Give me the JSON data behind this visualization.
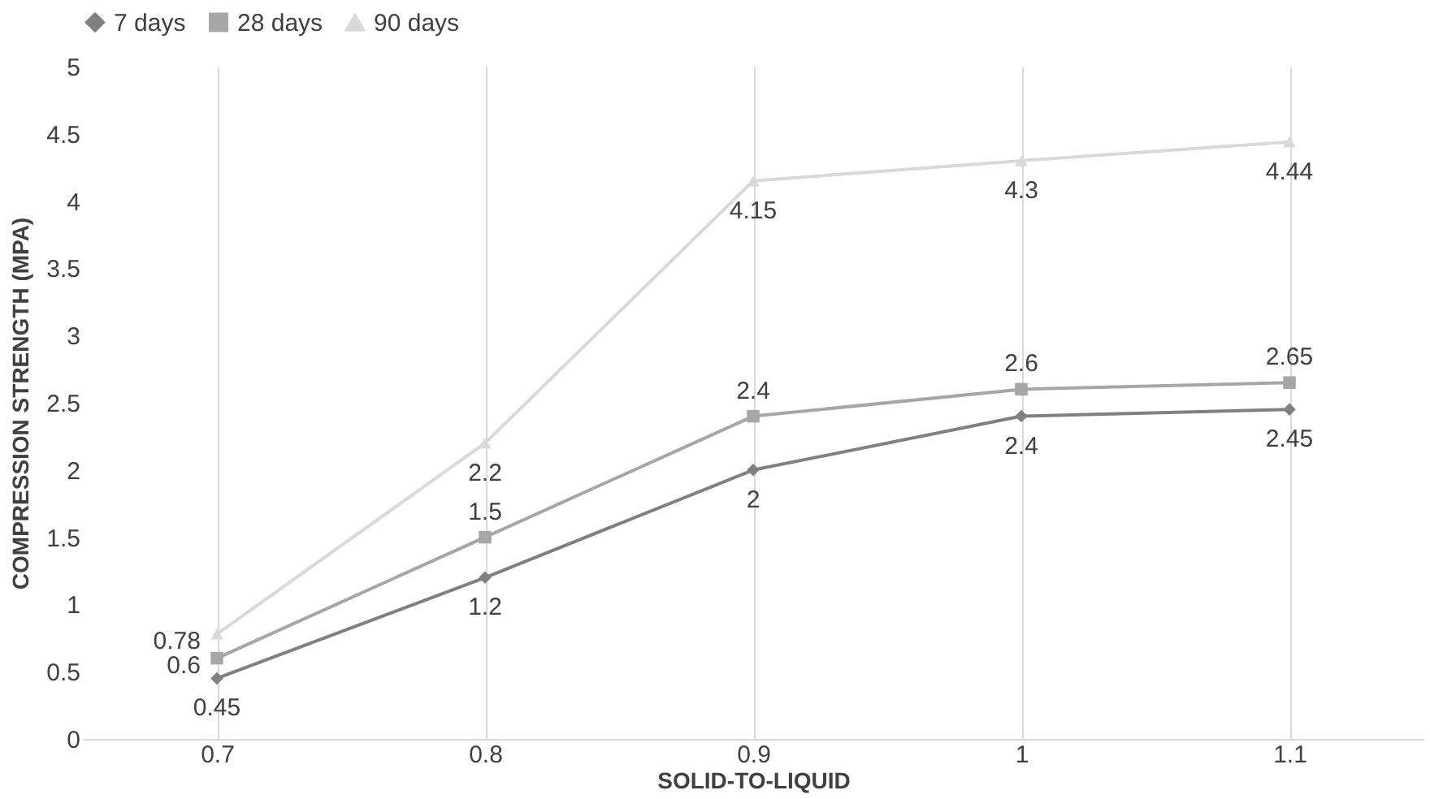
{
  "chart_data": {
    "type": "line",
    "xlabel": "SOLID-TO-LIQUID",
    "ylabel": "COMPRESSION STRENGTH (MPA)",
    "categories": [
      "0.7",
      "0.8",
      "0.9",
      "1",
      "1.1"
    ],
    "ylim": [
      0,
      5
    ],
    "yticks": [
      0,
      0.5,
      1,
      1.5,
      2,
      2.5,
      3,
      3.5,
      4,
      4.5,
      5
    ],
    "grid": "x",
    "legend": "top",
    "data_labels": true,
    "series": [
      {
        "name": "7 days",
        "color": "#808080",
        "marker": "diamond",
        "values": [
          0.45,
          1.2,
          2,
          2.4,
          2.45
        ]
      },
      {
        "name": "28 days",
        "color": "#a6a6a6",
        "marker": "square",
        "values": [
          0.6,
          1.5,
          2.4,
          2.6,
          2.65
        ]
      },
      {
        "name": "90 days",
        "color": "#d9d9d9",
        "marker": "triangle",
        "values": [
          0.78,
          2.2,
          4.15,
          4.3,
          4.44
        ]
      }
    ]
  }
}
